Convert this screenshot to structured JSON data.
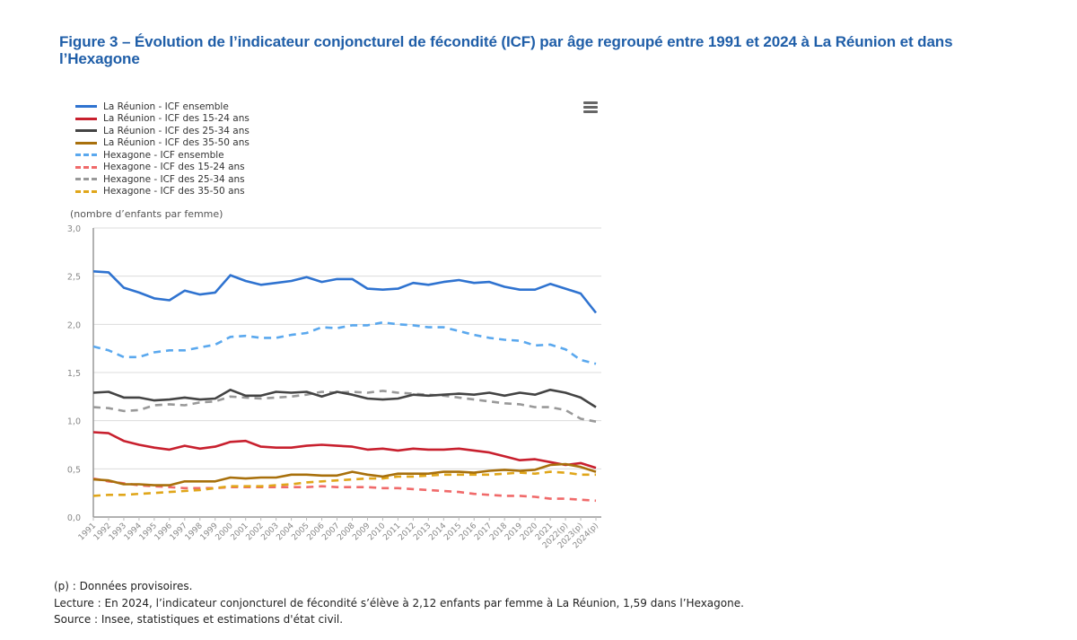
{
  "figure": {
    "title": "Figure 3 – Évolution de l’indicateur conjoncturel de fécondité (ICF) par âge regroupé entre 1991 et 2024 à La Réunion et dans l’Hexagone"
  },
  "toolbar": {
    "menu_icon": "hamburger-menu-icon"
  },
  "notes": {
    "provisional": "(p) : Données provisoires.",
    "reading": "Lecture : En 2024, l’indicateur conjoncturel de fécondité s’élève à 2,12 enfants par femme à La Réunion, 1,59 dans l’Hexagone.",
    "source": "Source : Insee, statistiques et estimations d'état civil."
  },
  "chart_data": {
    "type": "line",
    "title": "Figure 3 – Évolution de l’indicateur conjoncturel de fécondité (ICF) par âge regroupé entre 1991 et 2024 à La Réunion et dans l’Hexagone",
    "xlabel": "",
    "ylabel": "(nombre d’enfants par femme)",
    "ylim": [
      0,
      3
    ],
    "yticks": [
      "0,0",
      "0,5",
      "1,0",
      "1,5",
      "2,0",
      "2,5",
      "3,0"
    ],
    "ytick_values": [
      0,
      0.5,
      1,
      1.5,
      2,
      2.5,
      3
    ],
    "grid": true,
    "legend_position": "top-left",
    "categories": [
      "1991",
      "1992",
      "1993",
      "1994",
      "1995",
      "1996",
      "1997",
      "1998",
      "1999",
      "2000",
      "2001",
      "2002",
      "2003",
      "2004",
      "2005",
      "2006",
      "2007",
      "2008",
      "2009",
      "2010",
      "2011",
      "2012",
      "2013",
      "2014",
      "2015",
      "2016",
      "2017",
      "2018",
      "2019",
      "2020",
      "2021",
      "2022(p)",
      "2023(p)",
      "2024(p)"
    ],
    "series": [
      {
        "name": "La Réunion - ICF ensemble",
        "color": "#2f73d0",
        "dashed": false,
        "values": [
          2.55,
          2.54,
          2.38,
          2.33,
          2.27,
          2.25,
          2.35,
          2.31,
          2.33,
          2.51,
          2.45,
          2.41,
          2.43,
          2.45,
          2.49,
          2.44,
          2.47,
          2.47,
          2.37,
          2.36,
          2.37,
          2.43,
          2.41,
          2.44,
          2.46,
          2.43,
          2.44,
          2.39,
          2.36,
          2.36,
          2.42,
          2.37,
          2.32,
          2.12
        ]
      },
      {
        "name": "La Réunion - ICF des 15-24 ans",
        "color": "#c8202e",
        "dashed": false,
        "values": [
          0.88,
          0.87,
          0.79,
          0.75,
          0.72,
          0.7,
          0.74,
          0.71,
          0.73,
          0.78,
          0.79,
          0.73,
          0.72,
          0.72,
          0.74,
          0.75,
          0.74,
          0.73,
          0.7,
          0.71,
          0.69,
          0.71,
          0.7,
          0.7,
          0.71,
          0.69,
          0.67,
          0.63,
          0.59,
          0.6,
          0.57,
          0.54,
          0.56,
          0.51
        ]
      },
      {
        "name": "La Réunion - ICF des 25-34 ans",
        "color": "#444444",
        "dashed": false,
        "values": [
          1.29,
          1.3,
          1.24,
          1.24,
          1.21,
          1.22,
          1.24,
          1.22,
          1.23,
          1.32,
          1.26,
          1.26,
          1.3,
          1.29,
          1.3,
          1.25,
          1.3,
          1.27,
          1.23,
          1.22,
          1.23,
          1.27,
          1.26,
          1.27,
          1.28,
          1.27,
          1.29,
          1.26,
          1.29,
          1.27,
          1.32,
          1.29,
          1.24,
          1.14
        ]
      },
      {
        "name": "La Réunion - ICF des 35-50 ans",
        "color": "#a8700c",
        "dashed": false,
        "values": [
          0.39,
          0.38,
          0.34,
          0.34,
          0.33,
          0.33,
          0.37,
          0.37,
          0.37,
          0.41,
          0.4,
          0.41,
          0.41,
          0.44,
          0.44,
          0.43,
          0.43,
          0.47,
          0.44,
          0.42,
          0.45,
          0.45,
          0.45,
          0.47,
          0.47,
          0.46,
          0.48,
          0.49,
          0.48,
          0.49,
          0.54,
          0.55,
          0.52,
          0.47
        ]
      },
      {
        "name": "Hexagone - ICF ensemble",
        "color": "#5aa8ee",
        "dashed": true,
        "values": [
          1.77,
          1.73,
          1.66,
          1.66,
          1.71,
          1.73,
          1.73,
          1.76,
          1.79,
          1.87,
          1.88,
          1.86,
          1.86,
          1.89,
          1.91,
          1.97,
          1.96,
          1.99,
          1.99,
          2.02,
          2.0,
          1.99,
          1.97,
          1.97,
          1.93,
          1.89,
          1.86,
          1.84,
          1.83,
          1.78,
          1.79,
          1.74,
          1.63,
          1.59
        ]
      },
      {
        "name": "Hexagone - ICF des 15-24 ans",
        "color": "#f06a6a",
        "dashed": true,
        "values": [
          0.4,
          0.37,
          0.35,
          0.33,
          0.32,
          0.31,
          0.3,
          0.3,
          0.3,
          0.31,
          0.31,
          0.31,
          0.31,
          0.31,
          0.31,
          0.32,
          0.31,
          0.31,
          0.31,
          0.3,
          0.3,
          0.29,
          0.28,
          0.27,
          0.26,
          0.24,
          0.23,
          0.22,
          0.22,
          0.21,
          0.19,
          0.19,
          0.18,
          0.17
        ]
      },
      {
        "name": "Hexagone - ICF des 25-34 ans",
        "color": "#999999",
        "dashed": true,
        "values": [
          1.14,
          1.13,
          1.1,
          1.11,
          1.16,
          1.17,
          1.16,
          1.19,
          1.2,
          1.25,
          1.24,
          1.23,
          1.24,
          1.25,
          1.27,
          1.3,
          1.29,
          1.3,
          1.29,
          1.31,
          1.29,
          1.28,
          1.27,
          1.26,
          1.24,
          1.22,
          1.2,
          1.18,
          1.17,
          1.14,
          1.14,
          1.11,
          1.02,
          0.99
        ]
      },
      {
        "name": "Hexagone - ICF des 35-50 ans",
        "color": "#e0a61a",
        "dashed": true,
        "values": [
          0.22,
          0.23,
          0.23,
          0.24,
          0.25,
          0.26,
          0.27,
          0.28,
          0.3,
          0.32,
          0.32,
          0.32,
          0.33,
          0.34,
          0.36,
          0.37,
          0.38,
          0.39,
          0.4,
          0.4,
          0.42,
          0.42,
          0.43,
          0.44,
          0.44,
          0.44,
          0.44,
          0.45,
          0.46,
          0.45,
          0.47,
          0.46,
          0.44,
          0.44
        ]
      }
    ]
  }
}
